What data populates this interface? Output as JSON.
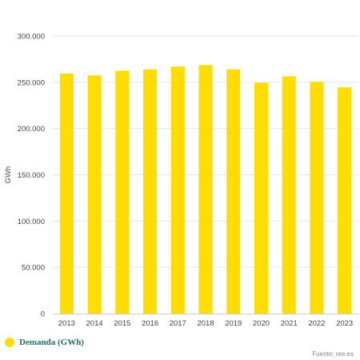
{
  "chart_data": {
    "type": "bar",
    "categories": [
      "2013",
      "2014",
      "2015",
      "2016",
      "2017",
      "2018",
      "2019",
      "2020",
      "2021",
      "2022",
      "2023"
    ],
    "series": [
      {
        "name": "Demanda (GWh)",
        "values": [
          259500,
          257500,
          262500,
          264000,
          267000,
          268500,
          264000,
          249500,
          256500,
          250500,
          244500
        ]
      }
    ],
    "ylabel": "GWh",
    "xlabel": "",
    "ylim": [
      0,
      300000
    ],
    "yticks": [
      "0",
      "50.000",
      "100.000",
      "150.000",
      "200.000",
      "250.000",
      "300.000"
    ],
    "grid": "horizontal",
    "legend": "bottom-left",
    "bar_color": "#ffdd00"
  },
  "source": "Fuente: ree.es"
}
